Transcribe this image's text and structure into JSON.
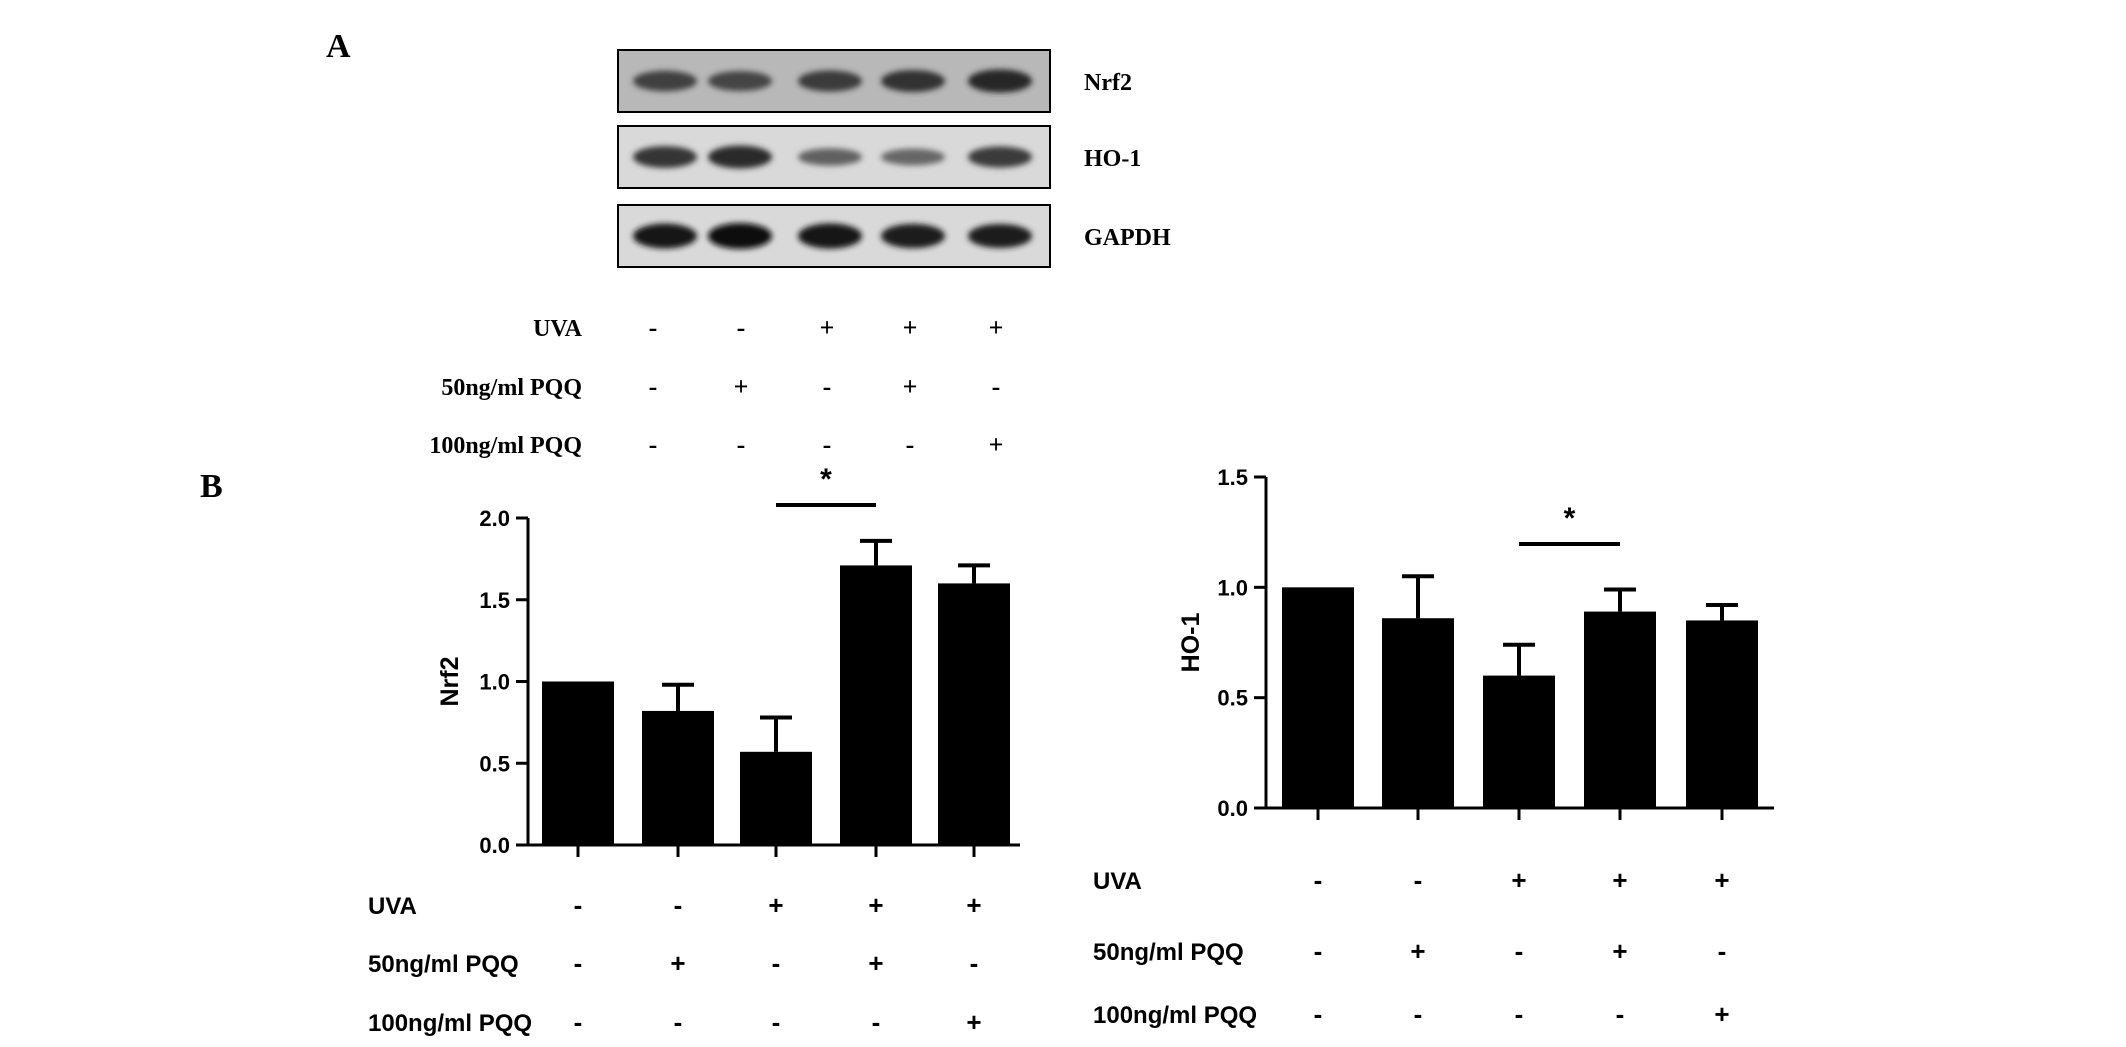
{
  "panel_a": {
    "label": "A",
    "blots": [
      {
        "label": "Nrf2",
        "intensity": [
          0.62,
          0.58,
          0.66,
          0.72,
          0.8
        ]
      },
      {
        "label": "HO-1",
        "intensity": [
          0.7,
          0.78,
          0.38,
          0.34,
          0.66
        ]
      },
      {
        "label": "GAPDH",
        "intensity": [
          0.92,
          1.0,
          0.94,
          0.88,
          0.86
        ]
      }
    ],
    "treatments": [
      {
        "label": "UVA",
        "signs": [
          "-",
          "-",
          "+",
          "+",
          "+"
        ]
      },
      {
        "label": "50ng/ml PQQ",
        "signs": [
          "-",
          "+",
          "-",
          "+",
          "-"
        ]
      },
      {
        "label": "100ng/ml PQQ",
        "signs": [
          "-",
          "-",
          "-",
          "-",
          "+"
        ]
      }
    ]
  },
  "panel_b": {
    "label": "B"
  },
  "chart_data": [
    {
      "type": "bar",
      "ylabel": "Nrf2",
      "ylim": [
        0,
        2.0
      ],
      "yticks": [
        0.0,
        0.5,
        1.0,
        1.5,
        2.0
      ],
      "ytick_labels": [
        "0.0",
        "0.5",
        "1.0",
        "1.5",
        "2.0"
      ],
      "values": [
        1.0,
        0.82,
        0.57,
        1.71,
        1.6
      ],
      "errors": [
        0.0,
        0.16,
        0.21,
        0.15,
        0.11
      ],
      "significance": {
        "from": 2,
        "to": 3,
        "label": "*"
      },
      "treatments": [
        {
          "label": "UVA",
          "signs": [
            "-",
            "-",
            "+",
            "+",
            "+"
          ]
        },
        {
          "label": "50ng/ml PQQ",
          "signs": [
            "-",
            "+",
            "-",
            "+",
            "-"
          ]
        },
        {
          "label": "100ng/ml PQQ",
          "signs": [
            "-",
            "-",
            "-",
            "-",
            "+"
          ]
        }
      ]
    },
    {
      "type": "bar",
      "ylabel": "HO-1",
      "ylim": [
        0,
        1.5
      ],
      "yticks": [
        0.0,
        0.5,
        1.0,
        1.5
      ],
      "ytick_labels": [
        "0.0",
        "0.5",
        "1.0",
        "1.5"
      ],
      "values": [
        1.0,
        0.86,
        0.6,
        0.89,
        0.85
      ],
      "errors": [
        0.0,
        0.19,
        0.14,
        0.1,
        0.07
      ],
      "significance": {
        "from": 2,
        "to": 3,
        "label": "*"
      },
      "treatments": [
        {
          "label": "UVA",
          "signs": [
            "-",
            "-",
            "+",
            "+",
            "+"
          ]
        },
        {
          "label": "50ng/ml PQQ",
          "signs": [
            "-",
            "+",
            "-",
            "+",
            "-"
          ]
        },
        {
          "label": "100ng/ml PQQ",
          "signs": [
            "-",
            "-",
            "-",
            "-",
            "+"
          ]
        }
      ]
    }
  ]
}
